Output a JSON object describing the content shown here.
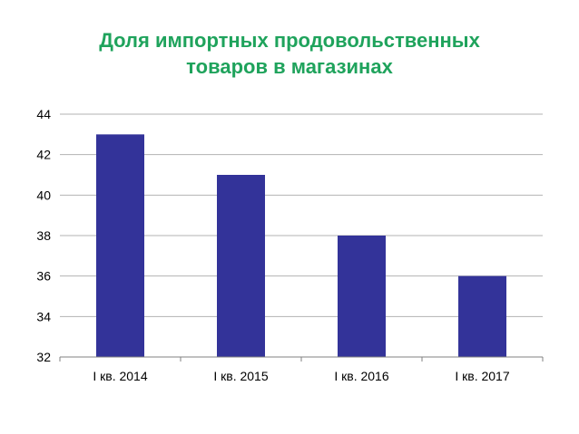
{
  "chart_data": {
    "type": "bar",
    "title_lines": [
      "Доля импортных продовольственных",
      "товаров в магазинах"
    ],
    "categories": [
      "I кв. 2014",
      "I кв. 2015",
      "I кв. 2016",
      "I кв. 2017"
    ],
    "values": [
      43,
      41,
      38,
      36
    ],
    "ylim": [
      32,
      44
    ],
    "yticks": [
      32,
      34,
      36,
      38,
      40,
      42,
      44
    ],
    "grid": true,
    "legend": "none"
  },
  "colors": {
    "title": "#1fa35c",
    "bar": "#333399",
    "gridline": "#b3b3b3",
    "axis": "#808080"
  }
}
